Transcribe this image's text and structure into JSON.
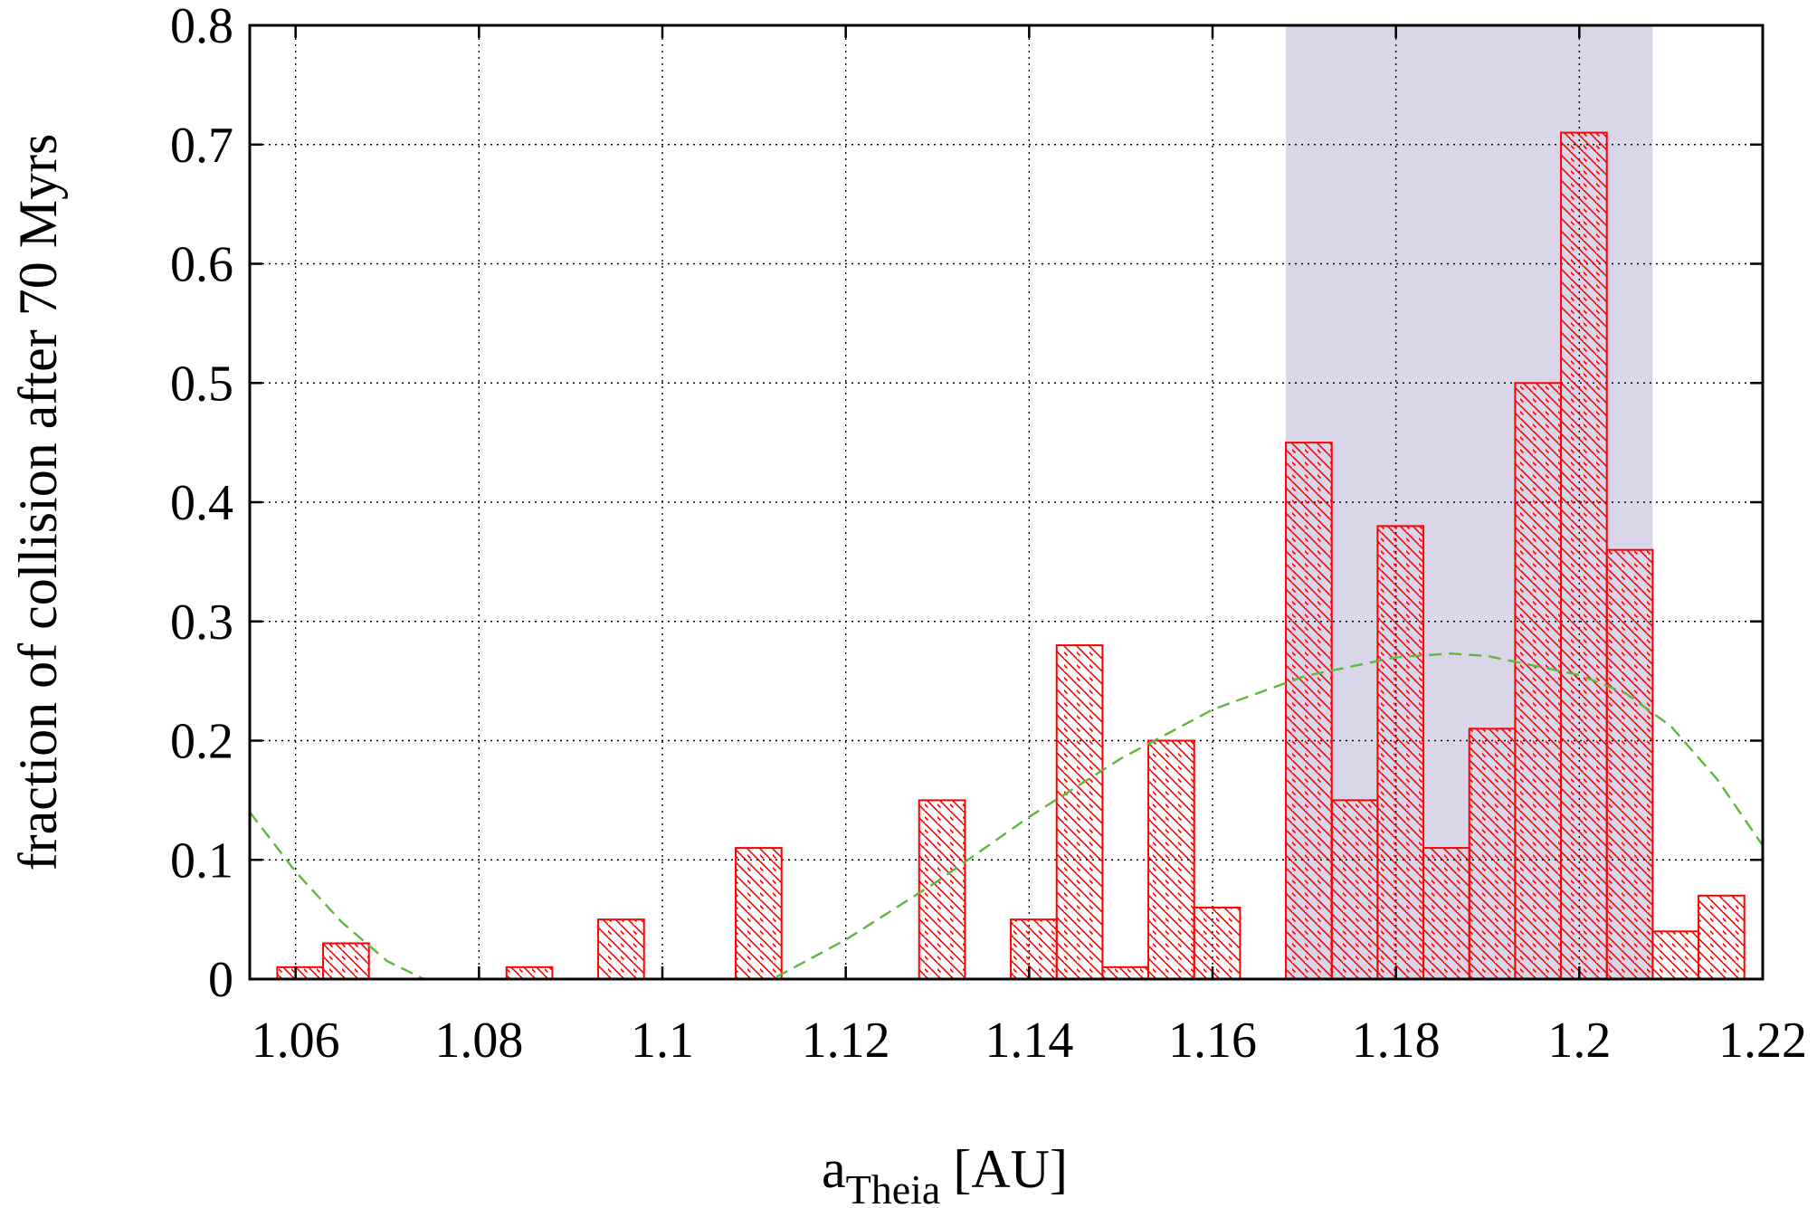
{
  "chart_data": {
    "type": "bar",
    "xlabel": "a",
    "xlabel_sub": "Theia",
    "xlabel_unit": "[AU]",
    "ylabel": "fraction of collision after 70 Myrs",
    "xlim": [
      1.055,
      1.22
    ],
    "ylim": [
      0,
      0.8
    ],
    "grid": true,
    "bin_width": 0.005,
    "x_ticks": [
      {
        "value": 1.06,
        "label": "1.06"
      },
      {
        "value": 1.08,
        "label": "1.08"
      },
      {
        "value": 1.1,
        "label": "1.1"
      },
      {
        "value": 1.12,
        "label": "1.12"
      },
      {
        "value": 1.14,
        "label": "1.14"
      },
      {
        "value": 1.16,
        "label": "1.16"
      },
      {
        "value": 1.18,
        "label": "1.18"
      },
      {
        "value": 1.2,
        "label": "1.2"
      },
      {
        "value": 1.22,
        "label": "1.22"
      }
    ],
    "y_ticks": [
      {
        "value": 0,
        "label": "0"
      },
      {
        "value": 0.1,
        "label": "0.1"
      },
      {
        "value": 0.2,
        "label": "0.2"
      },
      {
        "value": 0.3,
        "label": "0.3"
      },
      {
        "value": 0.4,
        "label": "0.4"
      },
      {
        "value": 0.5,
        "label": "0.5"
      },
      {
        "value": 0.6,
        "label": "0.6"
      },
      {
        "value": 0.7,
        "label": "0.7"
      },
      {
        "value": 0.8,
        "label": "0.8"
      }
    ],
    "bars": [
      {
        "x": 1.0605,
        "y": 0.01
      },
      {
        "x": 1.0655,
        "y": 0.03
      },
      {
        "x": 1.0855,
        "y": 0.01
      },
      {
        "x": 1.0955,
        "y": 0.05
      },
      {
        "x": 1.1105,
        "y": 0.11
      },
      {
        "x": 1.1305,
        "y": 0.15
      },
      {
        "x": 1.1405,
        "y": 0.05
      },
      {
        "x": 1.1455,
        "y": 0.28
      },
      {
        "x": 1.1505,
        "y": 0.01
      },
      {
        "x": 1.1555,
        "y": 0.2
      },
      {
        "x": 1.1605,
        "y": 0.06
      },
      {
        "x": 1.1705,
        "y": 0.45
      },
      {
        "x": 1.1755,
        "y": 0.15
      },
      {
        "x": 1.1805,
        "y": 0.38
      },
      {
        "x": 1.1855,
        "y": 0.11
      },
      {
        "x": 1.1905,
        "y": 0.21
      },
      {
        "x": 1.1955,
        "y": 0.5
      },
      {
        "x": 1.2005,
        "y": 0.71
      },
      {
        "x": 1.2055,
        "y": 0.36
      },
      {
        "x": 1.2105,
        "y": 0.04
      },
      {
        "x": 1.2155,
        "y": 0.07
      }
    ],
    "shaded_region": {
      "x_start": 1.168,
      "x_end": 1.208
    },
    "fit_curve": [
      {
        "x": 1.055,
        "y": 0.14
      },
      {
        "x": 1.06,
        "y": 0.09
      },
      {
        "x": 1.065,
        "y": 0.048
      },
      {
        "x": 1.07,
        "y": 0.015
      },
      {
        "x": 1.074,
        "y": 0.0
      },
      {
        "x": 1.112,
        "y": 0.0
      },
      {
        "x": 1.12,
        "y": 0.033
      },
      {
        "x": 1.13,
        "y": 0.082
      },
      {
        "x": 1.14,
        "y": 0.136
      },
      {
        "x": 1.15,
        "y": 0.185
      },
      {
        "x": 1.16,
        "y": 0.226
      },
      {
        "x": 1.17,
        "y": 0.254
      },
      {
        "x": 1.18,
        "y": 0.27
      },
      {
        "x": 1.186,
        "y": 0.273
      },
      {
        "x": 1.19,
        "y": 0.271
      },
      {
        "x": 1.2,
        "y": 0.255
      },
      {
        "x": 1.205,
        "y": 0.24
      },
      {
        "x": 1.21,
        "y": 0.212
      },
      {
        "x": 1.215,
        "y": 0.168
      },
      {
        "x": 1.22,
        "y": 0.112
      }
    ],
    "colors": {
      "bar_stroke": "#ff0000",
      "shade": "#d9d6ea",
      "fit": "#5fb83a",
      "grid": "#000000"
    }
  }
}
